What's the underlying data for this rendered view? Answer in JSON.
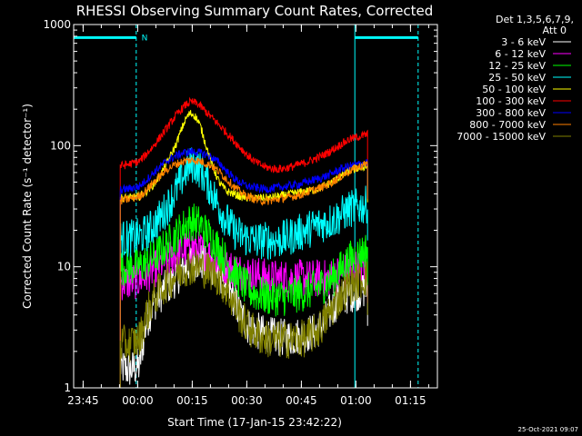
{
  "chart_data": {
    "type": "line",
    "title": "RHESSI Observing Summary Count Rates, Corrected",
    "xlabel": "Start Time (17-Jan-15 23:42:22)",
    "ylabel": "Corrected Count Rate (s⁻¹ detector⁻¹)",
    "y_scale": "log",
    "ylim": [
      1,
      1000
    ],
    "x_unit": "minutes after 17-Jan-15 23:42:22",
    "xlim": [
      0,
      100
    ],
    "x_ticks": [
      {
        "label": "23:45",
        "value": 2.6
      },
      {
        "label": "00:00",
        "value": 17.6
      },
      {
        "label": "00:15",
        "value": 32.6
      },
      {
        "label": "00:30",
        "value": 47.6
      },
      {
        "label": "00:45",
        "value": 62.6
      },
      {
        "label": "01:00",
        "value": 77.6
      },
      {
        "label": "01:15",
        "value": 92.6
      }
    ],
    "y_ticks": [
      {
        "label": "1",
        "value": 1
      },
      {
        "label": "10",
        "value": 10
      },
      {
        "label": "100",
        "value": 100
      },
      {
        "label": "1000",
        "value": 1000
      }
    ],
    "legend": {
      "position": "top-right",
      "header": [
        "Det 1,3,5,6,7,9,",
        "Att 0"
      ]
    },
    "markers": {
      "night_lines_x": [
        0,
        77.3
      ],
      "saa_lines_x": [
        17.2,
        94.7
      ],
      "bar_segments": [
        [
          0,
          17.2
        ],
        [
          77.3,
          94.7
        ]
      ],
      "bar_level": 780,
      "bar_label": "N",
      "bar_label_x": 19.5,
      "color": "#00ffff"
    },
    "x": [
      12.8,
      15,
      18,
      20,
      22,
      24,
      26,
      28,
      30,
      31,
      32,
      33,
      34,
      35,
      36,
      38,
      40,
      42,
      44,
      46,
      48,
      50,
      52,
      54,
      56,
      58,
      60,
      62,
      64,
      66,
      68,
      70,
      72,
      74,
      76,
      78,
      80,
      80.8
    ],
    "series": [
      {
        "name": "3 - 6 keV",
        "color": "#ffffff",
        "values": [
          1.5,
          1.4,
          1.5,
          3.5,
          5,
          6,
          7,
          8,
          9.5,
          10,
          11,
          11,
          11,
          11,
          10.5,
          10,
          9,
          7,
          5.5,
          4,
          3.2,
          3.0,
          2.8,
          2.7,
          2.6,
          2.6,
          2.6,
          2.7,
          2.8,
          2.9,
          3.2,
          4,
          5,
          5.5,
          6,
          6.2,
          6.5,
          6.5
        ]
      },
      {
        "name": "6 - 12 keV",
        "color": "#ff00ff",
        "values": [
          7.5,
          7.5,
          7.8,
          8.5,
          9.5,
          10.5,
          11.5,
          12.5,
          13.5,
          14,
          14.5,
          14.5,
          14,
          13.5,
          13,
          12,
          11,
          10,
          9.5,
          9,
          8.8,
          8.5,
          8.3,
          8,
          8,
          8,
          8,
          8,
          8,
          8,
          8,
          8,
          8.5,
          9,
          9.5,
          10,
          10,
          10
        ]
      },
      {
        "name": "12 - 25 keV",
        "color": "#00ff00",
        "values": [
          10,
          10,
          10,
          11,
          12,
          13.5,
          15.5,
          18,
          21,
          22.5,
          23.5,
          23.5,
          23,
          22,
          20,
          17,
          14,
          11,
          9,
          7.5,
          6.5,
          6,
          5.8,
          5.6,
          5.6,
          5.6,
          5.8,
          6,
          6.2,
          6.5,
          7,
          7.5,
          8.5,
          10,
          11.5,
          12.5,
          13.5,
          14
        ]
      },
      {
        "name": "25 - 50 keV",
        "color": "#00ffff",
        "values": [
          17,
          17,
          17.5,
          19,
          22,
          26,
          32,
          42,
          55,
          63,
          69,
          70,
          67,
          62,
          55,
          42,
          31,
          24,
          20,
          18,
          17,
          16.5,
          16.5,
          16.5,
          16.5,
          17,
          18,
          19,
          20,
          21.5,
          22.5,
          23.5,
          25,
          27.5,
          30,
          31,
          32,
          33
        ]
      },
      {
        "name": "50 - 100 keV",
        "color": "#ffff00",
        "values": [
          37,
          37,
          38,
          42,
          48,
          58,
          75,
          100,
          145,
          170,
          185,
          180,
          165,
          140,
          110,
          70,
          50,
          42,
          40,
          38,
          37,
          37,
          37,
          37,
          38,
          39,
          40,
          41,
          42,
          43,
          45,
          48,
          52,
          57,
          62,
          65,
          67,
          68
        ]
      },
      {
        "name": "100 - 300 keV",
        "color": "#ff0000",
        "values": [
          68,
          70,
          74,
          85,
          100,
          120,
          145,
          175,
          205,
          220,
          228,
          228,
          222,
          210,
          195,
          170,
          148,
          128,
          110,
          95,
          82,
          73,
          68,
          65,
          64,
          65,
          67,
          70,
          73,
          77,
          82,
          88,
          96,
          105,
          113,
          118,
          122,
          125
        ]
      },
      {
        "name": "300 - 800 keV",
        "color": "#0000ff",
        "values": [
          43,
          44,
          46,
          52,
          60,
          68,
          76,
          82,
          87,
          88,
          89,
          89,
          88,
          87,
          85,
          80,
          72,
          62,
          54,
          49,
          46,
          45,
          44,
          44,
          45,
          46,
          47,
          48,
          50,
          52,
          54,
          57,
          61,
          65,
          68,
          70,
          72,
          73
        ]
      },
      {
        "name": "800 - 7000 keV",
        "color": "#ff8000",
        "values": [
          35,
          36,
          38,
          43,
          50,
          57,
          65,
          70,
          74,
          75,
          76,
          76,
          75,
          74,
          72,
          68,
          61,
          53,
          46,
          41,
          38,
          36,
          35,
          35,
          36,
          37,
          38,
          39,
          41,
          43,
          45,
          48,
          52,
          57,
          62,
          66,
          70,
          72
        ]
      },
      {
        "name": "7000 - 15000 keV",
        "color": "#808000",
        "values": [
          2.3,
          2.3,
          2.5,
          4,
          5.5,
          6.5,
          7.5,
          8.5,
          9.5,
          10,
          10,
          10,
          10,
          10,
          9.5,
          9,
          8,
          6.5,
          5,
          3.8,
          3.2,
          2.8,
          2.6,
          2.5,
          2.5,
          2.5,
          2.5,
          2.5,
          2.6,
          2.8,
          3.2,
          4,
          5,
          6,
          7,
          7.5,
          8,
          8
        ]
      }
    ]
  },
  "footer": {
    "date_stamp": "25-Oct-2021 09:07"
  }
}
